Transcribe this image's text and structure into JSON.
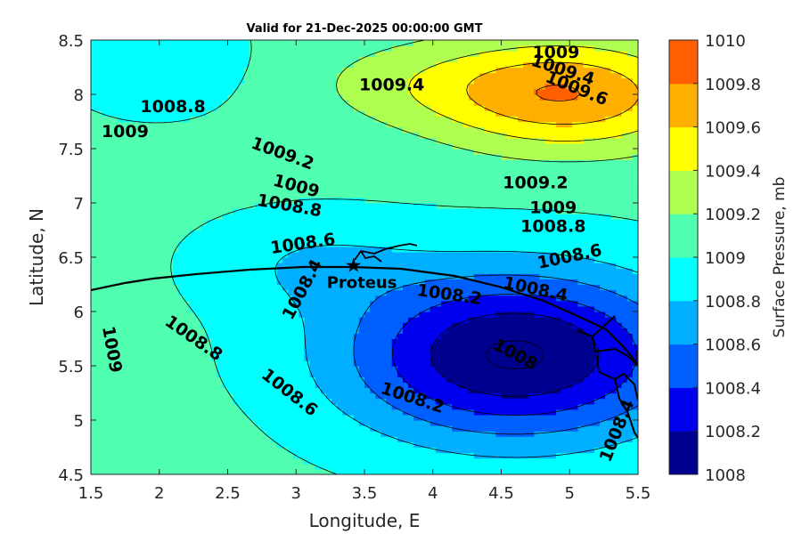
{
  "chart_data": {
    "type": "contour",
    "title": "Valid for 21-Dec-2025 00:00:00 GMT",
    "xlabel": "Longitude, E",
    "ylabel": "Latitude, N",
    "colorbar_label": "Surface Pressure, mb",
    "xlim": [
      1.5,
      5.5
    ],
    "ylim": [
      4.5,
      8.5
    ],
    "x_ticks": [
      "1.5",
      "2",
      "2.5",
      "3",
      "3.5",
      "4",
      "4.5",
      "5",
      "5.5"
    ],
    "y_ticks": [
      "4.5",
      "5",
      "5.5",
      "6",
      "6.5",
      "7",
      "7.5",
      "8",
      "8.5"
    ],
    "levels": [
      1008,
      1008.2,
      1008.4,
      1008.6,
      1008.8,
      1009,
      1009.2,
      1009.4,
      1009.6,
      1009.8,
      1010
    ],
    "level_labels": [
      "1008",
      "1008.2",
      "1008.4",
      "1008.6",
      "1008.8",
      "1009",
      "1009.2",
      "1009.4",
      "1009.6",
      "1009.8",
      "1010"
    ],
    "colors": [
      "#00008f",
      "#0000ef",
      "#005fff",
      "#00afff",
      "#00ffff",
      "#50ffaf",
      "#afff50",
      "#ffff00",
      "#ffaf00",
      "#ff5f00",
      "#ff0000"
    ],
    "grid": false,
    "fields": {
      "low": {
        "lon": 4.6,
        "lat": 5.6
      },
      "high": {
        "lon": 5.0,
        "lat": 8.0
      }
    },
    "contour_labels": [
      {
        "text": "1009",
        "lon": 1.65,
        "lat": 5.65,
        "rot": 80
      },
      {
        "text": "1008.8",
        "lon": 2.25,
        "lat": 5.75,
        "rot": 35
      },
      {
        "text": "1008.6",
        "lon": 2.95,
        "lat": 5.25,
        "rot": 38
      },
      {
        "text": "1008.2",
        "lon": 3.85,
        "lat": 5.2,
        "rot": 18
      },
      {
        "text": "1008",
        "lon": 4.6,
        "lat": 5.6,
        "rot": 28
      },
      {
        "text": "1008.4",
        "lon": 5.35,
        "lat": 4.9,
        "rot": -68
      },
      {
        "text": "1008.4",
        "lon": 3.05,
        "lat": 6.2,
        "rot": -62
      },
      {
        "text": "1008.2",
        "lon": 4.12,
        "lat": 6.15,
        "rot": 8
      },
      {
        "text": "1008.4",
        "lon": 4.75,
        "lat": 6.2,
        "rot": 12
      },
      {
        "text": "1008.6",
        "lon": 5.0,
        "lat": 6.5,
        "rot": -12
      },
      {
        "text": "1008.6",
        "lon": 3.05,
        "lat": 6.62,
        "rot": -8
      },
      {
        "text": "1008.8",
        "lon": 2.95,
        "lat": 6.97,
        "rot": 10
      },
      {
        "text": "1009",
        "lon": 3.0,
        "lat": 7.15,
        "rot": 15
      },
      {
        "text": "1009.2",
        "lon": 2.9,
        "lat": 7.45,
        "rot": 20
      },
      {
        "text": "1008.8",
        "lon": 4.88,
        "lat": 6.78,
        "rot": 0
      },
      {
        "text": "1009",
        "lon": 4.88,
        "lat": 6.95,
        "rot": 0
      },
      {
        "text": "1009.2",
        "lon": 4.75,
        "lat": 7.18,
        "rot": 0
      },
      {
        "text": "1009.4",
        "lon": 3.7,
        "lat": 8.08,
        "rot": 0
      },
      {
        "text": "1009.6",
        "lon": 5.05,
        "lat": 8.05,
        "rot": 22
      },
      {
        "text": "1009.4",
        "lon": 4.95,
        "lat": 8.22,
        "rot": 18
      },
      {
        "text": "1009",
        "lon": 4.9,
        "lat": 8.38,
        "rot": 0
      },
      {
        "text": "1008.8",
        "lon": 2.1,
        "lat": 7.88,
        "rot": 0
      },
      {
        "text": "1009",
        "lon": 1.75,
        "lat": 7.65,
        "rot": 0
      }
    ],
    "station": {
      "name": "Proteus",
      "lon": 3.42,
      "lat": 6.43
    }
  }
}
